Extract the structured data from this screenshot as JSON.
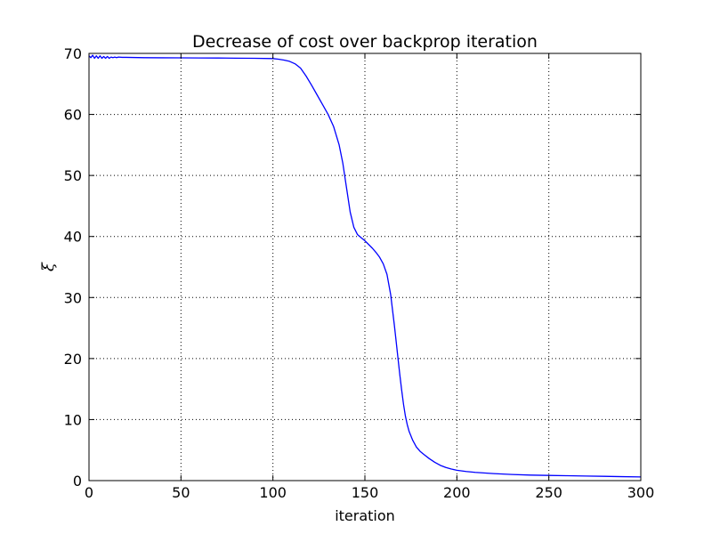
{
  "chart_data": {
    "type": "line",
    "title": "Decrease of cost over backprop iteration",
    "xlabel": "iteration",
    "ylabel": "ξ",
    "xlim": [
      0,
      300
    ],
    "ylim": [
      0,
      70
    ],
    "xticks": [
      0,
      50,
      100,
      150,
      200,
      250,
      300
    ],
    "yticks": [
      0,
      10,
      20,
      30,
      40,
      50,
      60,
      70
    ],
    "grid": true,
    "line_color": "#0000ff",
    "series": [
      {
        "x": [
          0,
          1,
          2,
          3,
          4,
          5,
          6,
          7,
          8,
          9,
          10,
          11,
          12,
          13,
          14,
          15,
          16,
          18,
          20,
          30,
          40,
          50,
          60,
          70,
          80,
          90,
          100,
          103,
          106,
          109,
          112,
          115,
          118,
          121,
          124,
          127,
          130,
          133,
          136,
          138,
          140,
          142,
          144,
          146,
          148,
          150,
          152,
          154,
          156,
          158,
          160,
          162,
          164,
          165,
          166,
          167,
          168,
          169,
          170,
          171,
          172,
          173,
          174,
          176,
          178,
          180,
          182,
          185,
          188,
          191,
          194,
          197,
          200,
          205,
          210,
          220,
          230,
          240,
          250,
          260,
          270,
          280,
          290,
          300
        ],
        "y": [
          69.6,
          69.3,
          69.7,
          69.2,
          69.6,
          69.2,
          69.6,
          69.2,
          69.5,
          69.2,
          69.5,
          69.2,
          69.4,
          69.3,
          69.4,
          69.3,
          69.4,
          69.35,
          69.35,
          69.3,
          69.28,
          69.27,
          69.25,
          69.24,
          69.22,
          69.2,
          69.15,
          69.05,
          68.9,
          68.7,
          68.3,
          67.6,
          66.3,
          64.8,
          63.2,
          61.6,
          60.0,
          58.0,
          55.0,
          52.0,
          48.0,
          44.0,
          41.5,
          40.3,
          39.8,
          39.3,
          38.7,
          38.1,
          37.4,
          36.6,
          35.5,
          33.8,
          30.5,
          28.0,
          25.5,
          22.8,
          20.0,
          17.3,
          14.8,
          12.5,
          10.6,
          9.2,
          8.1,
          6.6,
          5.5,
          4.8,
          4.3,
          3.6,
          3.0,
          2.5,
          2.15,
          1.9,
          1.7,
          1.5,
          1.35,
          1.15,
          1.0,
          0.9,
          0.85,
          0.8,
          0.75,
          0.7,
          0.65,
          0.6
        ]
      }
    ]
  }
}
